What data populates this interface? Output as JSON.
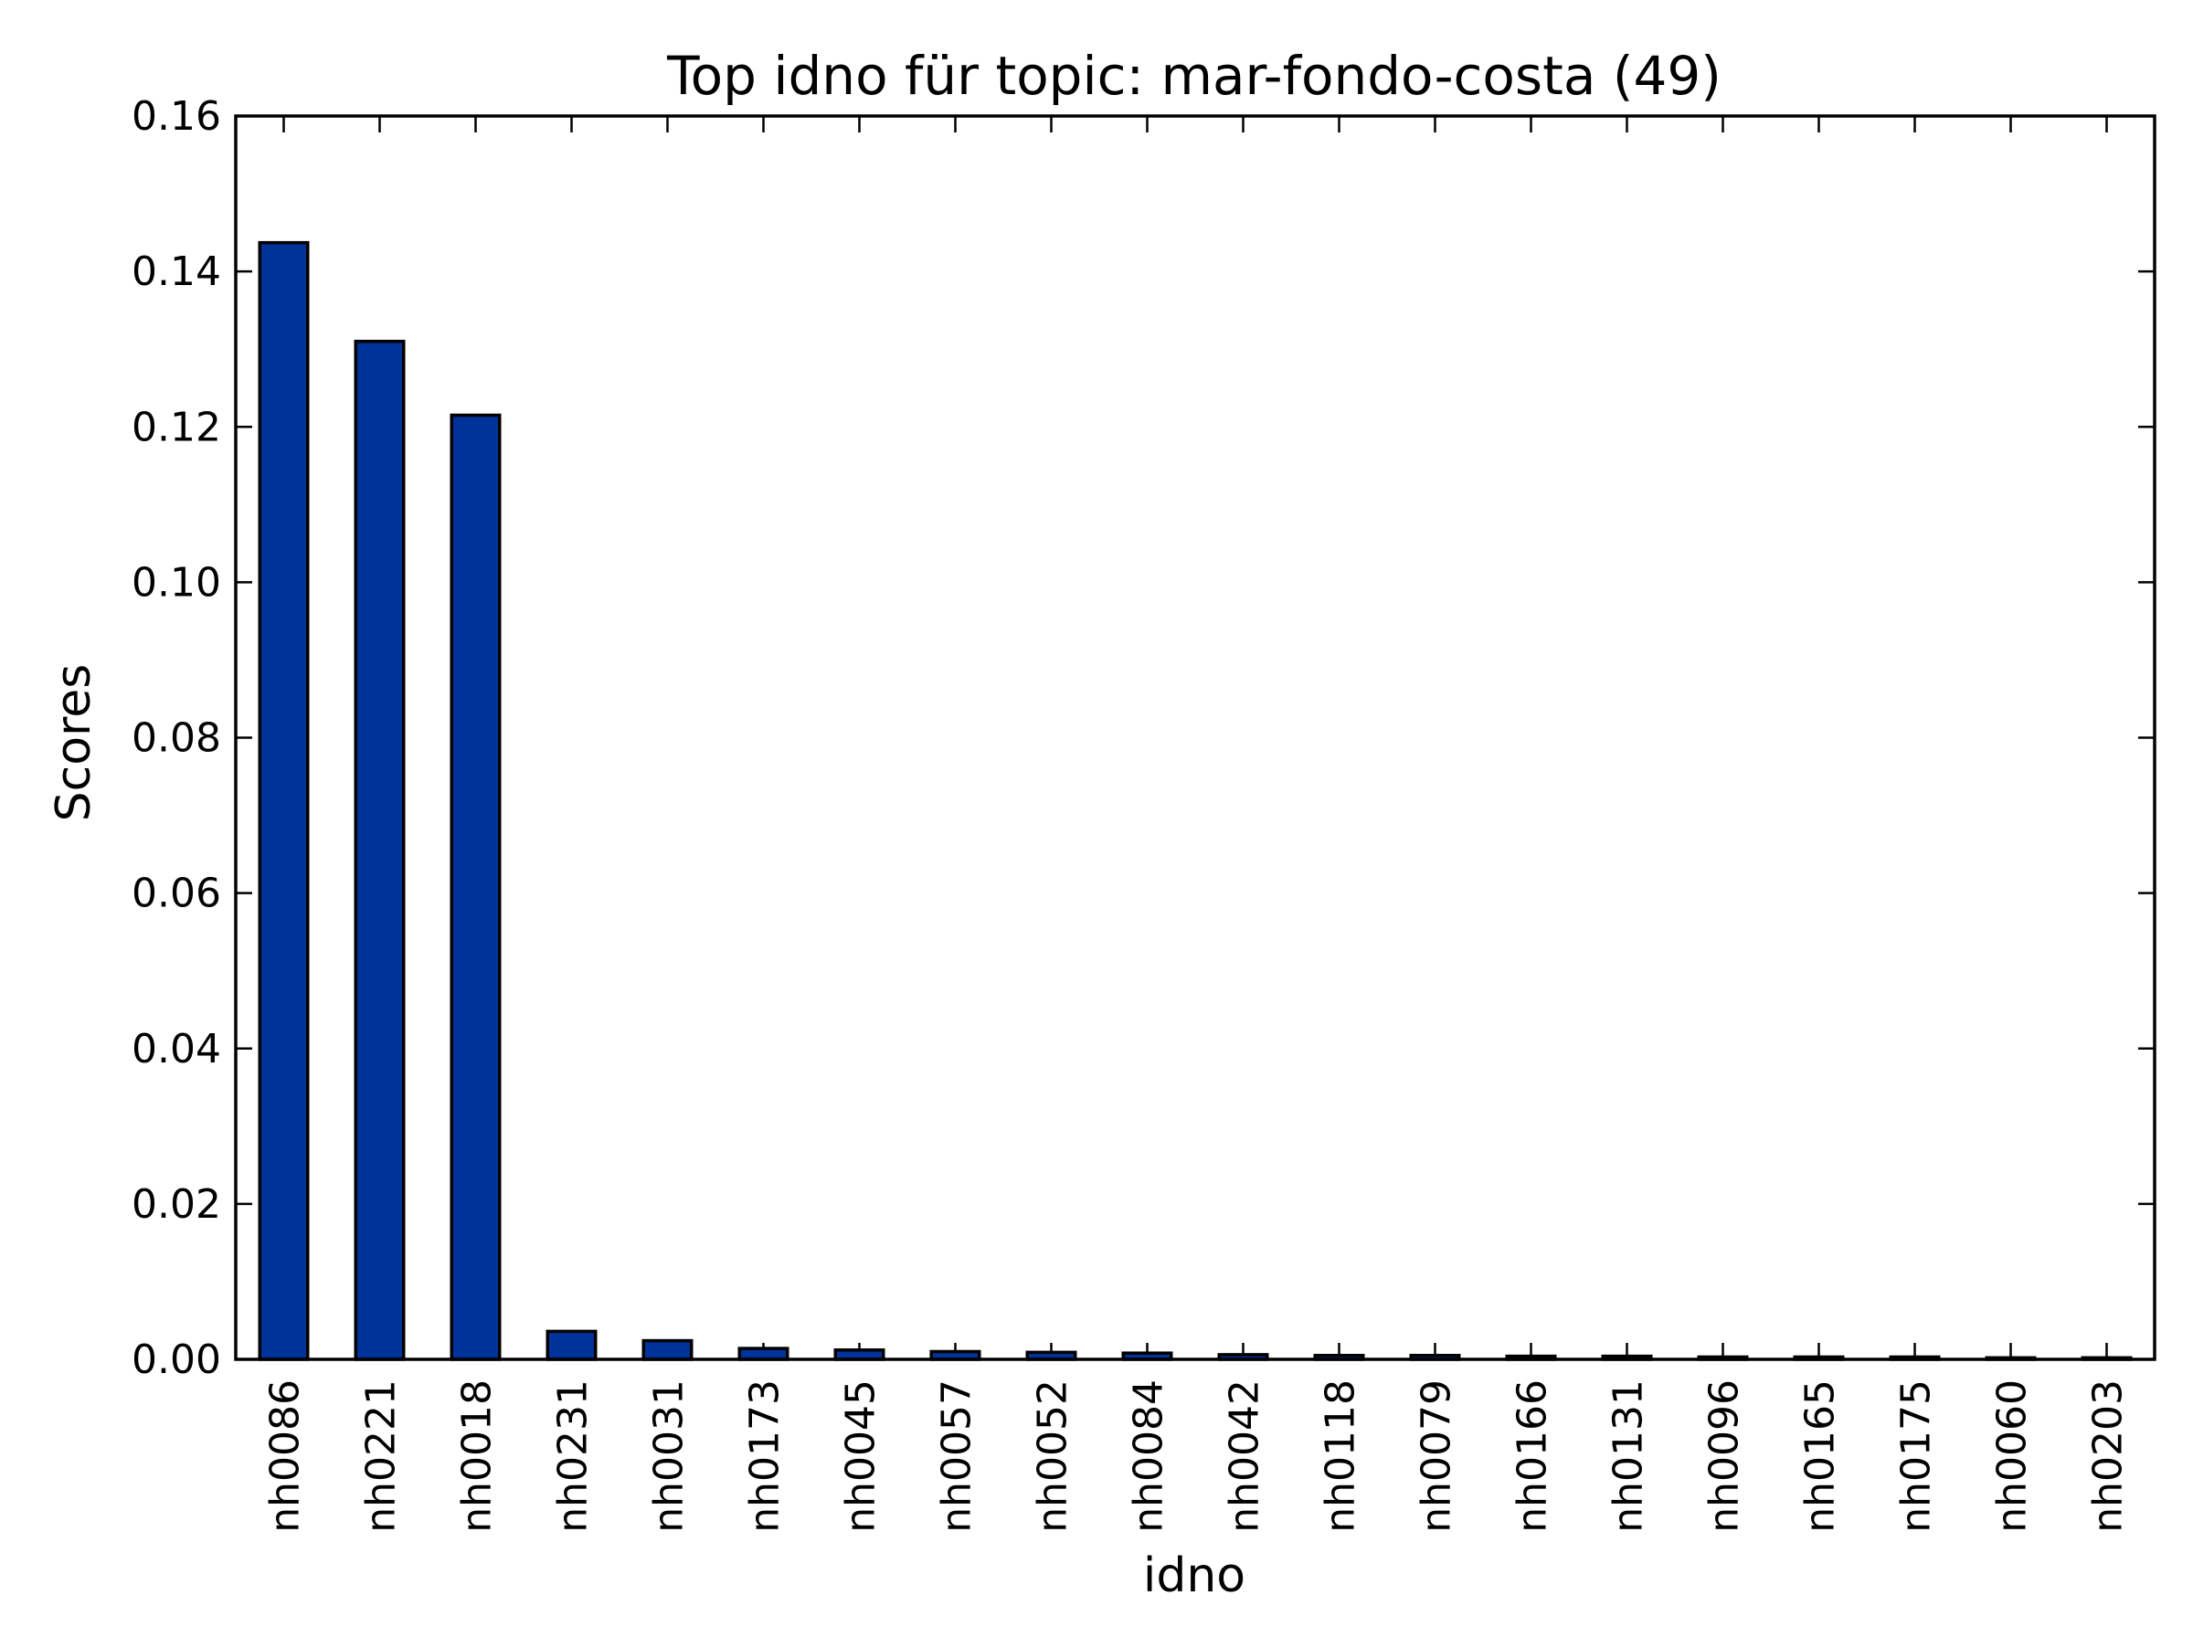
{
  "chart_data": {
    "type": "bar",
    "title": "Top idno für topic: mar-fondo-costa (49)",
    "xlabel": "idno",
    "ylabel": "Scores",
    "categories": [
      "nh0086",
      "nh0221",
      "nh0018",
      "nh0231",
      "nh0031",
      "nh0173",
      "nh0045",
      "nh0057",
      "nh0052",
      "nh0084",
      "nh0042",
      "nh0118",
      "nh0079",
      "nh0166",
      "nh0131",
      "nh0096",
      "nh0165",
      "nh0175",
      "nh0060",
      "nh0203"
    ],
    "values": [
      0.1437,
      0.131,
      0.1215,
      0.0036,
      0.0024,
      0.0014,
      0.0012,
      0.001,
      0.0009,
      0.0008,
      0.0006,
      0.0005,
      0.0005,
      0.0004,
      0.0004,
      0.0003,
      0.0003,
      0.0003,
      0.0002,
      0.0002
    ],
    "ylim": [
      0,
      0.16
    ],
    "yticks": [
      0.0,
      0.02,
      0.04,
      0.06,
      0.08,
      0.1,
      0.12,
      0.14,
      0.16
    ],
    "ytick_labels": [
      "0.00",
      "0.02",
      "0.04",
      "0.06",
      "0.08",
      "0.10",
      "0.12",
      "0.14",
      "0.16"
    ],
    "bar_color": "#003399",
    "grid": false,
    "legend": "none"
  }
}
